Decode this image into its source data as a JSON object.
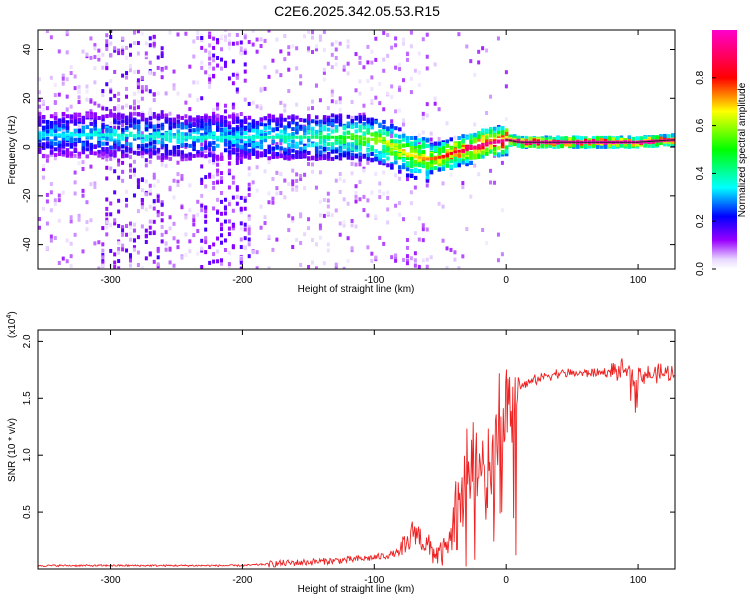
{
  "title": "C2E6.2025.342.05.53.R15",
  "chart_data": [
    {
      "type": "heatmap",
      "xlabel": "Height of straight line (km)",
      "ylabel": "Frequency (Hz)",
      "xlim": [
        -355,
        128
      ],
      "ylim": [
        -50,
        48
      ],
      "xticks": [
        -300,
        -200,
        -100,
        0,
        100
      ],
      "xtick_labels": [
        "-300",
        "-200",
        "-100",
        "0",
        "100"
      ],
      "yticks": [
        -40,
        -20,
        0,
        20,
        40
      ],
      "ytick_labels": [
        "-40",
        "-20",
        "0",
        "20",
        "40"
      ],
      "colorbar": {
        "label": "Normalized spectral amplitude",
        "range": [
          0,
          1
        ],
        "ticks": [
          0.0,
          0.2,
          0.4,
          0.6,
          0.8
        ],
        "tick_labels": [
          "0.0",
          "0.2",
          "0.4",
          "0.6",
          "0.8"
        ],
        "colors": [
          "#ffffff",
          "#9900ff",
          "#0000ff",
          "#00ffff",
          "#00ff00",
          "#ffff00",
          "#ff0000",
          "#ff00ff"
        ]
      },
      "ridge": {
        "x": [
          -355,
          -300,
          -250,
          -200,
          -150,
          -120,
          -100,
          -90,
          -80,
          -70,
          -60,
          -50,
          -40,
          -30,
          -20,
          -10,
          0,
          10,
          50,
          100,
          128
        ],
        "freq": [
          5,
          5,
          4,
          4,
          4,
          4,
          3,
          1,
          -2,
          -4,
          -5,
          -4,
          -2,
          -1,
          1,
          2,
          3,
          2,
          2,
          2,
          3
        ],
        "amplitude": [
          0.3,
          0.35,
          0.35,
          0.35,
          0.4,
          0.5,
          0.55,
          0.6,
          0.6,
          0.65,
          0.7,
          0.75,
          0.8,
          0.85,
          0.9,
          0.9,
          0.9,
          0.95,
          0.95,
          0.95,
          0.9
        ]
      }
    },
    {
      "type": "line",
      "xlabel": "Height of straight line (km)",
      "ylabel": "SNR (10 * v/v)",
      "y_multiplier": "(x10",
      "y_multiplier_exp": "4",
      "y_multiplier_close": ")",
      "xlim": [
        -355,
        128
      ],
      "ylim": [
        0,
        2.1
      ],
      "xticks": [
        -300,
        -200,
        -100,
        0,
        100
      ],
      "xtick_labels": [
        "-300",
        "-200",
        "-100",
        "0",
        "100"
      ],
      "yticks": [
        0.5,
        1.0,
        1.5,
        2.0
      ],
      "ytick_labels": [
        "0.5",
        "1.0",
        "1.5",
        "2.0"
      ],
      "series": [
        {
          "name": "SNR",
          "color": "#ee2222",
          "x": [
            -355,
            -300,
            -250,
            -200,
            -170,
            -150,
            -120,
            -100,
            -90,
            -80,
            -75,
            -70,
            -60,
            -55,
            -50,
            -45,
            -40,
            -35,
            -30,
            -25,
            -20,
            -15,
            -10,
            -5,
            0,
            5,
            10,
            20,
            30,
            40,
            60,
            80,
            90,
            95,
            100,
            110,
            120,
            128
          ],
          "y": [
            0.03,
            0.03,
            0.03,
            0.03,
            0.05,
            0.06,
            0.08,
            0.1,
            0.12,
            0.15,
            0.2,
            0.35,
            0.2,
            0.15,
            0.12,
            0.18,
            0.3,
            0.5,
            0.8,
            1.0,
            1.0,
            0.95,
            1.05,
            1.3,
            1.45,
            1.55,
            1.6,
            1.65,
            1.7,
            1.72,
            1.72,
            1.73,
            1.75,
            1.7,
            1.72,
            1.7,
            1.72,
            1.7
          ]
        }
      ]
    }
  ]
}
